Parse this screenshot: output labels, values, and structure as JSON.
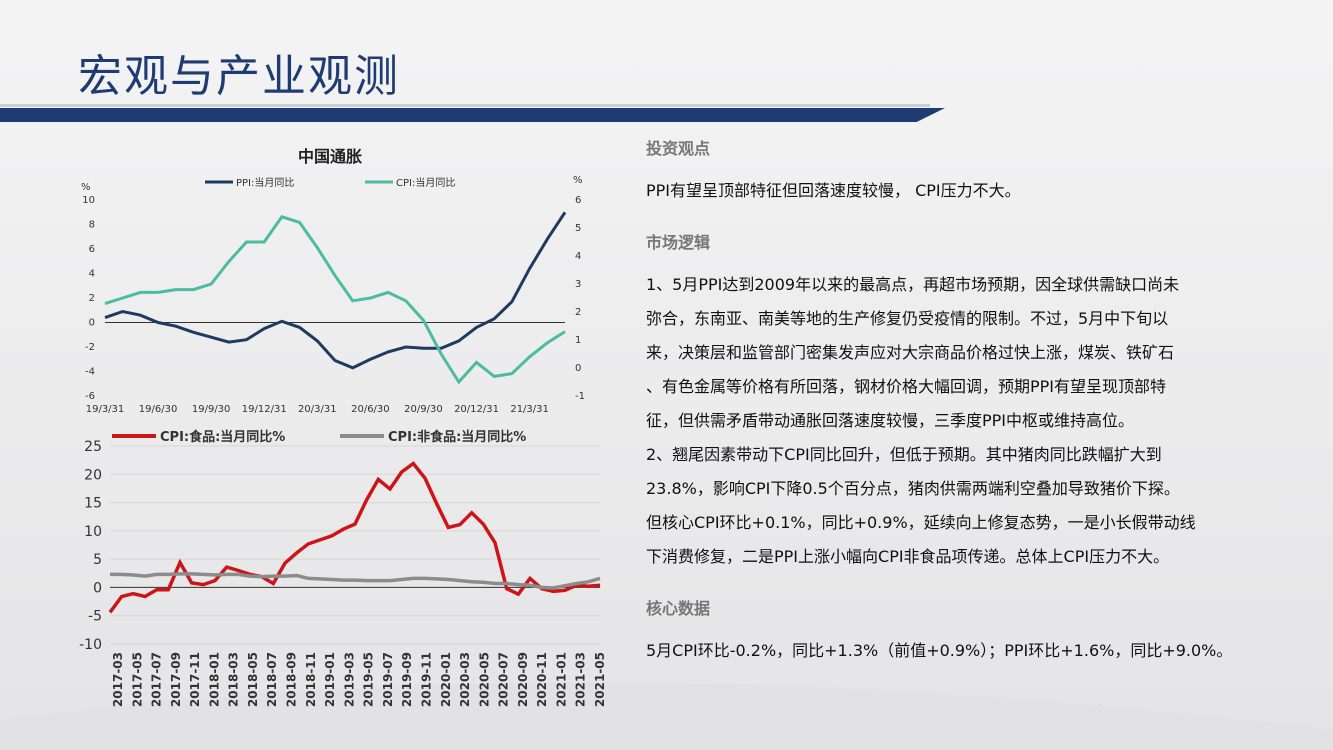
{
  "title": "宏观与产业观测",
  "colors": {
    "brand": "#1f3c72",
    "ppi": "#1e3a5f",
    "cpi": "#4dbba1",
    "food": "#cc1518",
    "nonfood": "#8c8c8c"
  },
  "right": {
    "s1_title": "投资观点",
    "s1_text": "PPI有望呈顶部特征但回落速度较慢， CPI压力不大。",
    "s2_title": "市场逻辑",
    "s2_lines": [
      "1、5月PPI达到2009年以来的最高点，再超市场预期，因全球供需缺口尚未",
      "弥合，东南亚、南美等地的生产修复仍受疫情的限制。不过，5月中下旬以",
      "来，决策层和监管部门密集发声应对大宗商品价格过快上涨，煤炭、铁矿石",
      "、有色金属等价格有所回落，钢材价格大幅回调，预期PPI有望呈现顶部特",
      "征，但供需矛盾带动通胀回落速度较慢，三季度PPI中枢或维持高位。",
      "2、翘尾因素带动下CPI同比回升，但低于预期。其中猪肉同比跌幅扩大到",
      "23.8%，影响CPI下降0.5个百分点，猪肉供需两端利空叠加导致猪价下探。",
      "但核心CPI环比+0.1%，同比+0.9%，延续向上修复态势，一是小长假带动线",
      "下消费修复，二是PPI上涨小幅向CPI非食品项传递。总体上CPI压力不大。"
    ],
    "s3_title": "核心数据",
    "s3_text": "5月CPI环比-0.2%，同比+1.3%（前值+0.9%）；PPI环比+1.6%，同比+9.0%。"
  },
  "chart_data": [
    {
      "type": "line",
      "title": "中国通胀",
      "left_unit": "%",
      "right_unit": "%",
      "left_ylim": [
        -6,
        10
      ],
      "right_ylim": [
        -1,
        6
      ],
      "left_ticks": [
        "10",
        "8",
        "6",
        "4",
        "2",
        "0",
        "-2",
        "-4",
        "-6"
      ],
      "right_ticks": [
        "6",
        "5",
        "4",
        "3",
        "2",
        "1",
        "0",
        "-1"
      ],
      "x_ticks": [
        "19/3/31",
        "19/6/30",
        "19/9/30",
        "19/12/31",
        "20/3/31",
        "20/6/30",
        "20/9/30",
        "20/12/31",
        "21/3/31"
      ],
      "x": [
        "2019-03",
        "2019-04",
        "2019-05",
        "2019-06",
        "2019-07",
        "2019-08",
        "2019-09",
        "2019-10",
        "2019-11",
        "2019-12",
        "2020-01",
        "2020-02",
        "2020-03",
        "2020-04",
        "2020-05",
        "2020-06",
        "2020-07",
        "2020-08",
        "2020-09",
        "2020-10",
        "2020-11",
        "2020-12",
        "2021-01",
        "2021-02",
        "2021-03",
        "2021-04",
        "2021-05"
      ],
      "series": [
        {
          "name": "PPI:当月同比",
          "axis": "left",
          "values": [
            0.4,
            0.9,
            0.6,
            0.0,
            -0.3,
            -0.8,
            -1.2,
            -1.6,
            -1.4,
            -0.5,
            0.1,
            -0.4,
            -1.5,
            -3.1,
            -3.7,
            -3.0,
            -2.4,
            -2.0,
            -2.1,
            -2.1,
            -1.5,
            -0.4,
            0.3,
            1.7,
            4.4,
            6.8,
            9.0
          ]
        },
        {
          "name": "CPI:当月同比",
          "axis": "right",
          "values": [
            2.3,
            2.5,
            2.7,
            2.7,
            2.8,
            2.8,
            3.0,
            3.8,
            4.5,
            4.5,
            5.4,
            5.2,
            4.3,
            3.3,
            2.4,
            2.5,
            2.7,
            2.4,
            1.7,
            0.5,
            -0.5,
            0.2,
            -0.3,
            -0.2,
            0.4,
            0.9,
            1.3
          ]
        }
      ]
    },
    {
      "type": "line",
      "ylim": [
        -10,
        25
      ],
      "y_ticks": [
        "25",
        "20",
        "15",
        "10",
        "5",
        "0",
        "-5",
        "-10"
      ],
      "x_ticks": [
        "2017-03",
        "2017-05",
        "2017-07",
        "2017-09",
        "2017-11",
        "2018-01",
        "2018-03",
        "2018-05",
        "2018-07",
        "2018-09",
        "2018-11",
        "2019-01",
        "2019-03",
        "2019-05",
        "2019-07",
        "2019-09",
        "2019-11",
        "2020-01",
        "2020-03",
        "2020-05",
        "2020-07",
        "2020-09",
        "2020-11",
        "2021-01",
        "2021-03",
        "2021-05"
      ],
      "series": [
        {
          "name": "CPI:食品:当月同比%",
          "values": [
            -4.4,
            -1.6,
            -1.1,
            -1.6,
            -0.4,
            -0.4,
            4.4,
            0.8,
            0.5,
            1.2,
            3.6,
            3.0,
            2.3,
            1.9,
            0.7,
            4.3,
            6.1,
            7.7,
            8.4,
            9.1,
            10.3,
            11.2,
            15.5,
            19.1,
            17.4,
            20.4,
            21.9,
            19.3,
            14.8,
            10.6,
            11.1,
            13.2,
            11.2,
            7.9,
            -0.2,
            -1.2,
            1.6,
            -0.2,
            -0.7,
            -0.5,
            0.4,
            0.2,
            0.4
          ]
        },
        {
          "name": "CPI:非食品:当月同比%",
          "values": [
            2.3,
            2.3,
            2.2,
            2.0,
            2.3,
            2.3,
            2.4,
            2.4,
            2.3,
            2.2,
            2.3,
            2.3,
            2.0,
            1.9,
            2.0,
            2.0,
            2.1,
            1.6,
            1.5,
            1.4,
            1.3,
            1.3,
            1.2,
            1.2,
            1.2,
            1.4,
            1.6,
            1.6,
            1.5,
            1.4,
            1.2,
            1.0,
            0.9,
            0.7,
            0.7,
            0.5,
            0.4,
            0.0,
            -0.1,
            0.3,
            0.7,
            1.0,
            1.6
          ]
        }
      ]
    }
  ]
}
